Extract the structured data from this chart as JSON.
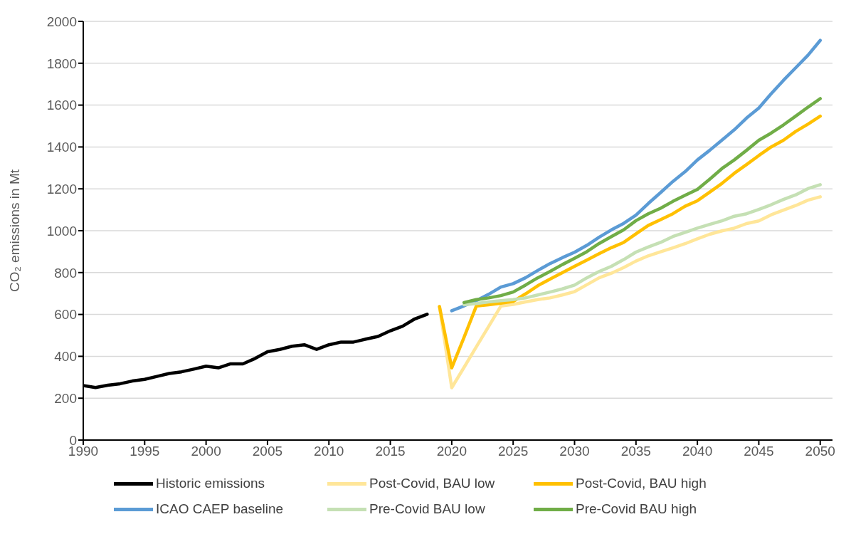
{
  "chart_data": {
    "type": "line",
    "ylabel": "CO₂ emissions in Mt",
    "xlim": [
      1990,
      2051
    ],
    "xticks": [
      1990,
      1995,
      2000,
      2005,
      2010,
      2015,
      2020,
      2025,
      2030,
      2035,
      2040,
      2045,
      2050
    ],
    "ylim": [
      0,
      2000
    ],
    "yticks": [
      0,
      200,
      400,
      600,
      800,
      1000,
      1200,
      1400,
      1600,
      1800,
      2000
    ],
    "grid": "y",
    "legend": "bottom",
    "marker": "none",
    "line_style": "solid",
    "series": [
      {
        "name": "Historic emissions",
        "color": "#000000",
        "x": [
          1990,
          1991,
          1992,
          1993,
          1994,
          1995,
          1996,
          1997,
          1998,
          1999,
          2000,
          2001,
          2002,
          2003,
          2004,
          2005,
          2006,
          2007,
          2008,
          2009,
          2010,
          2011,
          2012,
          2013,
          2014,
          2015,
          2016,
          2017,
          2018
        ],
        "values": [
          260,
          251,
          262,
          269,
          282,
          290,
          304,
          318,
          326,
          339,
          353,
          345,
          364,
          364,
          390,
          422,
          433,
          448,
          455,
          433,
          455,
          468,
          468,
          482,
          495,
          522,
          544,
          579,
          601
        ]
      },
      {
        "name": "Post-Covid, BAU low",
        "color": "#ffe699",
        "x": [
          2019,
          2020,
          2021,
          2022,
          2023,
          2024,
          2025,
          2026,
          2027,
          2028,
          2029,
          2030,
          2031,
          2032,
          2033,
          2034,
          2035,
          2036,
          2037,
          2038,
          2039,
          2040,
          2041,
          2042,
          2043,
          2044,
          2045,
          2046,
          2047,
          2048,
          2049,
          2050
        ],
        "values": [
          638,
          250,
          347,
          445,
          542,
          640,
          648,
          660,
          671,
          679,
          693,
          709,
          742,
          775,
          797,
          824,
          855,
          880,
          899,
          918,
          938,
          961,
          983,
          999,
          1012,
          1034,
          1047,
          1076,
          1098,
          1120,
          1146,
          1162
        ]
      },
      {
        "name": "Post-Covid, BAU high",
        "color": "#ffc000",
        "x": [
          2019,
          2020,
          2021,
          2022,
          2023,
          2024,
          2025,
          2026,
          2027,
          2028,
          2029,
          2030,
          2031,
          2032,
          2033,
          2034,
          2035,
          2036,
          2037,
          2038,
          2039,
          2040,
          2041,
          2042,
          2043,
          2044,
          2045,
          2046,
          2047,
          2048,
          2049,
          2050
        ],
        "values": [
          638,
          345,
          490,
          640,
          646,
          654,
          662,
          698,
          737,
          769,
          799,
          830,
          860,
          890,
          919,
          944,
          985,
          1025,
          1053,
          1081,
          1117,
          1143,
          1184,
          1226,
          1274,
          1316,
          1359,
          1400,
          1432,
          1474,
          1509,
          1547
        ]
      },
      {
        "name": "ICAO CAEP baseline",
        "color": "#5b9bd5",
        "x": [
          2020,
          2021,
          2022,
          2023,
          2024,
          2025,
          2026,
          2027,
          2028,
          2029,
          2030,
          2031,
          2032,
          2033,
          2034,
          2035,
          2036,
          2037,
          2038,
          2039,
          2040,
          2041,
          2042,
          2043,
          2044,
          2045,
          2046,
          2047,
          2048,
          2049,
          2050
        ],
        "values": [
          618,
          641,
          666,
          696,
          731,
          747,
          775,
          810,
          843,
          871,
          897,
          930,
          969,
          1004,
          1035,
          1074,
          1130,
          1182,
          1235,
          1282,
          1338,
          1384,
          1433,
          1482,
          1538,
          1586,
          1654,
          1718,
          1778,
          1838,
          1909
        ]
      },
      {
        "name": "Pre-Covid BAU low",
        "color": "#c5e0b4",
        "x": [
          2021,
          2022,
          2023,
          2024,
          2025,
          2026,
          2027,
          2028,
          2029,
          2030,
          2031,
          2032,
          2033,
          2034,
          2035,
          2036,
          2037,
          2038,
          2039,
          2040,
          2041,
          2042,
          2043,
          2044,
          2045,
          2046,
          2047,
          2048,
          2049,
          2050
        ],
        "values": [
          646,
          652,
          660,
          666,
          671,
          679,
          693,
          707,
          722,
          740,
          775,
          805,
          830,
          862,
          898,
          922,
          944,
          972,
          992,
          1012,
          1030,
          1047,
          1069,
          1081,
          1102,
          1124,
          1149,
          1171,
          1201,
          1220
        ]
      },
      {
        "name": "Pre-Covid BAU high",
        "color": "#70ad47",
        "x": [
          2021,
          2022,
          2023,
          2024,
          2025,
          2026,
          2027,
          2028,
          2029,
          2030,
          2031,
          2032,
          2033,
          2034,
          2035,
          2036,
          2037,
          2038,
          2039,
          2040,
          2041,
          2042,
          2043,
          2044,
          2045,
          2046,
          2047,
          2048,
          2049,
          2050
        ],
        "values": [
          657,
          671,
          679,
          690,
          707,
          740,
          775,
          805,
          838,
          868,
          900,
          939,
          972,
          1004,
          1048,
          1081,
          1107,
          1140,
          1169,
          1197,
          1246,
          1297,
          1338,
          1384,
          1432,
          1466,
          1505,
          1547,
          1590,
          1631
        ]
      }
    ]
  }
}
